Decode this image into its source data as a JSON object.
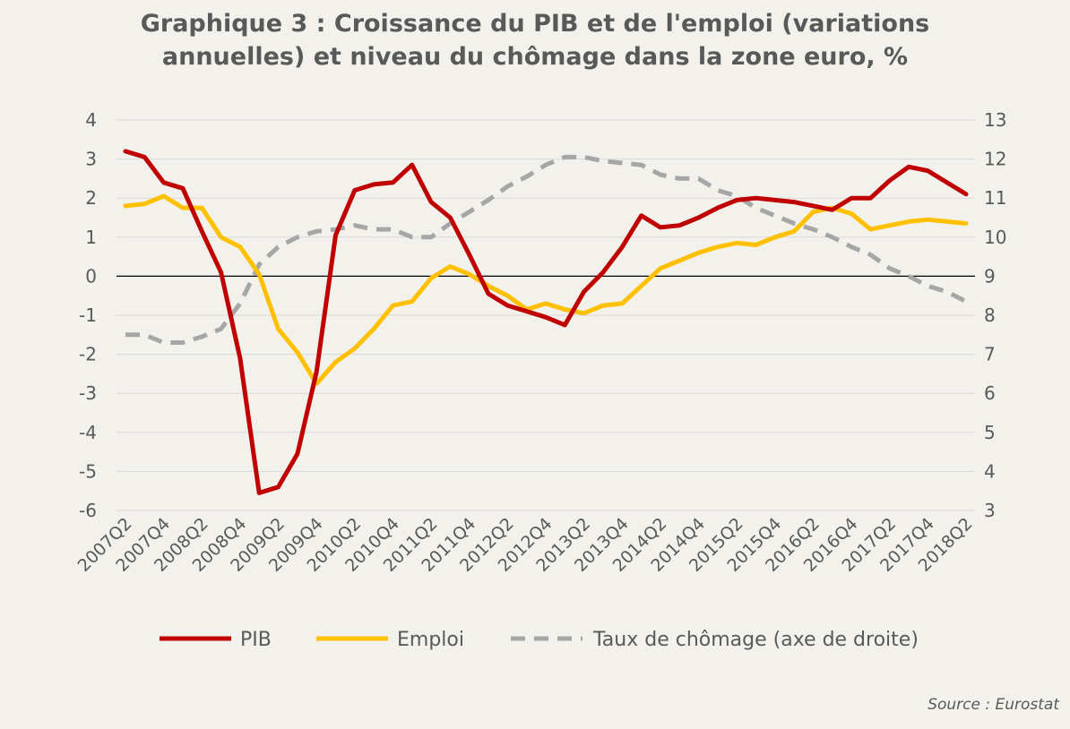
{
  "chart_data": {
    "type": "line",
    "title_line1": "Graphique 3 : Croissance du PIB et de l'emploi (variations",
    "title_line2": "annuelles) et niveau du chômage dans la zone euro, %",
    "source": "Source : Eurostat",
    "x": [
      "2007Q2",
      "2007Q3",
      "2007Q4",
      "2008Q1",
      "2008Q2",
      "2008Q3",
      "2008Q4",
      "2009Q1",
      "2009Q2",
      "2009Q3",
      "2009Q4",
      "2010Q1",
      "2010Q2",
      "2010Q3",
      "2010Q4",
      "2011Q1",
      "2011Q2",
      "2011Q3",
      "2011Q4",
      "2012Q1",
      "2012Q2",
      "2012Q3",
      "2012Q4",
      "2013Q1",
      "2013Q2",
      "2013Q3",
      "2013Q4",
      "2014Q1",
      "2014Q2",
      "2014Q3",
      "2014Q4",
      "2015Q1",
      "2015Q2",
      "2015Q3",
      "2015Q4",
      "2016Q1",
      "2016Q2",
      "2016Q3",
      "2016Q4",
      "2017Q1",
      "2017Q2",
      "2017Q3",
      "2017Q4",
      "2018Q1",
      "2018Q2"
    ],
    "x_tick_labels": [
      "2007Q2",
      "2007Q4",
      "2008Q2",
      "2008Q4",
      "2009Q2",
      "2009Q4",
      "2010Q2",
      "2010Q4",
      "2011Q2",
      "2011Q4",
      "2012Q2",
      "2012Q4",
      "2013Q2",
      "2013Q4",
      "2014Q2",
      "2014Q4",
      "2015Q2",
      "2015Q4",
      "2016Q2",
      "2016Q4",
      "2017Q2",
      "2017Q4",
      "2018Q2"
    ],
    "y_left": {
      "ylim": [
        -6,
        4
      ],
      "ticks": [
        "4",
        "3",
        "2",
        "1",
        "0",
        "-1",
        "-2",
        "-3",
        "-4",
        "-5",
        "-6"
      ]
    },
    "y_right": {
      "ylim": [
        3,
        13
      ],
      "ticks": [
        "13",
        "12",
        "11",
        "10",
        "9",
        "8",
        "7",
        "6",
        "5",
        "4",
        "3"
      ]
    },
    "series": [
      {
        "name": "PIB",
        "axis": "left",
        "color": "#c00000",
        "dash": "solid",
        "values": [
          3.2,
          3.05,
          2.4,
          2.25,
          1.15,
          0.1,
          -2.1,
          -5.55,
          -5.4,
          -4.55,
          -2.45,
          1.05,
          2.2,
          2.35,
          2.4,
          2.85,
          1.9,
          1.5,
          0.55,
          -0.45,
          -0.75,
          -0.9,
          -1.05,
          -1.25,
          -0.4,
          0.1,
          0.75,
          1.55,
          1.25,
          1.3,
          1.5,
          1.75,
          1.95,
          2.0,
          1.95,
          1.9,
          1.8,
          1.7,
          2.0,
          2.0,
          2.45,
          2.8,
          2.7,
          2.4,
          2.1
        ]
      },
      {
        "name": "Emploi",
        "axis": "left",
        "color": "#ffc000",
        "dash": "solid",
        "values": [
          1.8,
          1.85,
          2.05,
          1.75,
          1.75,
          1.0,
          0.75,
          0.05,
          -1.35,
          -1.95,
          -2.75,
          -2.2,
          -1.85,
          -1.35,
          -0.75,
          -0.65,
          -0.05,
          0.25,
          0.05,
          -0.25,
          -0.5,
          -0.85,
          -0.7,
          -0.85,
          -0.95,
          -0.75,
          -0.7,
          -0.25,
          0.2,
          0.4,
          0.6,
          0.75,
          0.85,
          0.8,
          1.0,
          1.15,
          1.65,
          1.75,
          1.6,
          1.2,
          1.3,
          1.4,
          1.45,
          1.4,
          1.35
        ]
      },
      {
        "name": "Taux de chômage (axe de droite)",
        "axis": "right",
        "color": "#a6a6a6",
        "dash": "dashed",
        "values": [
          7.5,
          7.5,
          7.3,
          7.3,
          7.45,
          7.65,
          8.3,
          9.3,
          9.75,
          10.0,
          10.15,
          10.2,
          10.3,
          10.2,
          10.2,
          10.0,
          10.0,
          10.35,
          10.65,
          10.95,
          11.3,
          11.55,
          11.85,
          12.05,
          12.05,
          11.95,
          11.9,
          11.85,
          11.6,
          11.5,
          11.5,
          11.2,
          11.05,
          10.75,
          10.55,
          10.35,
          10.2,
          10.0,
          9.75,
          9.55,
          9.2,
          9.0,
          8.75,
          8.6,
          8.35
        ]
      }
    ],
    "legend_position": "bottom",
    "grid": "horizontal"
  }
}
